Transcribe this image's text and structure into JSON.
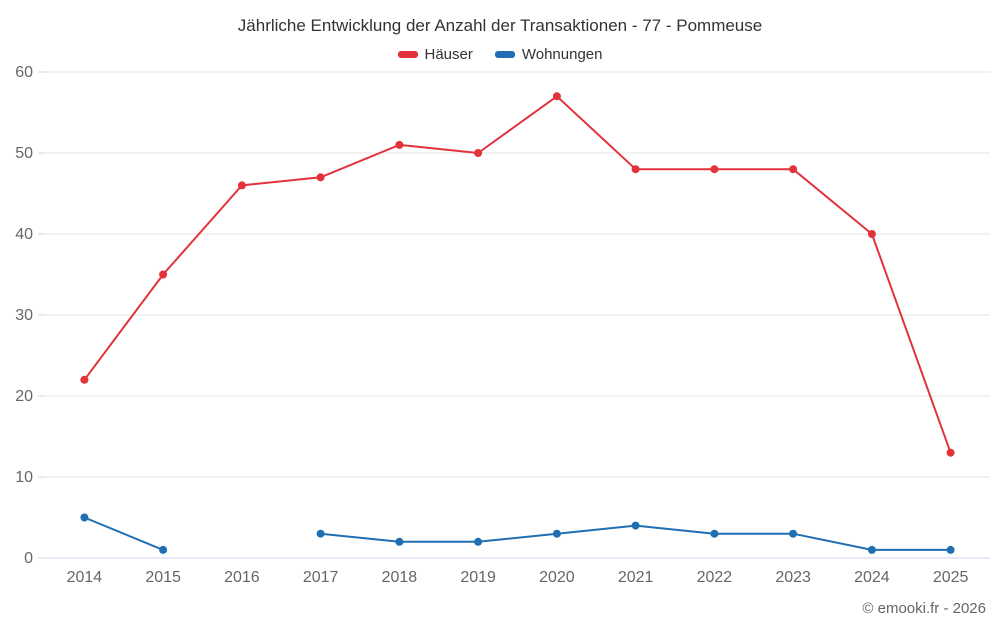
{
  "title": "Jährliche Entwicklung der Anzahl der Transaktionen - 77 - Pommeuse",
  "footer": "© emooki.fr - 2026",
  "chart_data": {
    "type": "line",
    "title": "Jährliche Entwicklung der Anzahl der Transaktionen - 77 - Pommeuse",
    "categories": [
      "2014",
      "2015",
      "2016",
      "2017",
      "2018",
      "2019",
      "2020",
      "2021",
      "2022",
      "2023",
      "2024",
      "2025"
    ],
    "series": [
      {
        "name": "Häuser",
        "color": "#e2333c",
        "values": [
          22,
          35,
          46,
          47,
          51,
          50,
          57,
          48,
          48,
          48,
          40,
          13
        ]
      },
      {
        "name": "Wohnungen",
        "color": "#1f6fb2",
        "values": [
          5,
          1,
          null,
          3,
          2,
          2,
          3,
          4,
          3,
          3,
          1,
          1
        ]
      }
    ],
    "xlabel": "",
    "ylabel": "",
    "ylim": [
      0,
      60
    ],
    "yticks": [
      0,
      10,
      20,
      30,
      40,
      50,
      60
    ],
    "grid": "horizontal",
    "grid_color": "#e6e6e6",
    "axis_color": "#ccd6eb",
    "axis_label_color": "#666666",
    "legend_position": "top",
    "background": "#ffffff"
  }
}
